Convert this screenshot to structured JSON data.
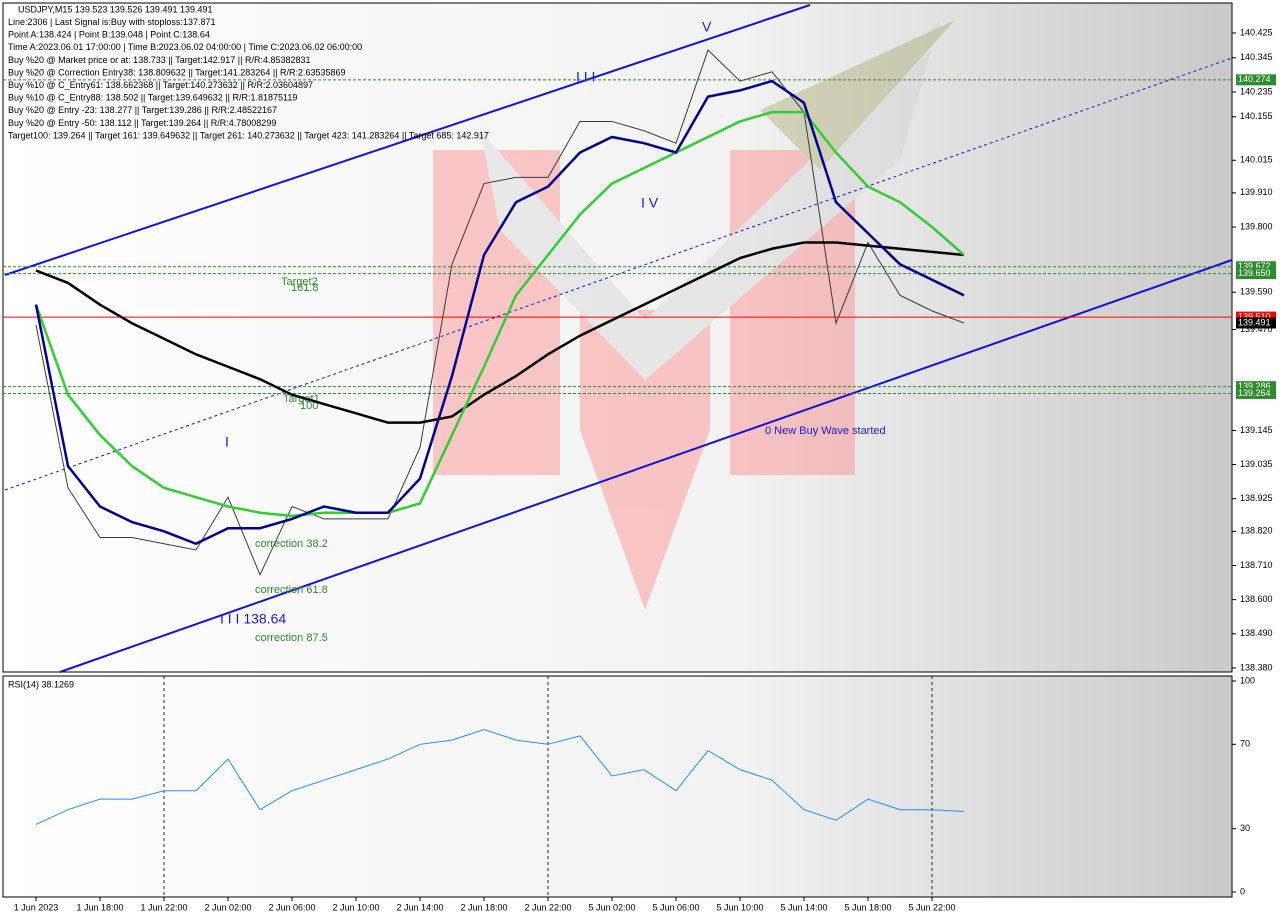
{
  "chart_data": [
    {
      "type": "line",
      "title": "USDJPY,M15  139.523 139.526 139.491 139.491",
      "info_lines": [
        "Line:2306 | Last Signal is:Buy with stoploss:137.871",
        "Point A:138.424 | Point B:139.048 | Point C:138.64",
        "Time A:2023.06.01 17:00:00 | Time B:2023.06.02 04:00:00 | Time C:2023.06.02 06:00:00",
        "Buy %20 @ Market price or at: 138.733 || Target:142.917 || R/R:4.85382831",
        "Buy %20 @ Correction Entry38: 138.809632 || Target:141.283264 || R/R:2.63535869",
        "Buy %10 @ C_Entry61: 138.662368 || Target:140.273632 || R/R:2.03604897",
        "Buy %10 @ C_Entry88: 138.502 || Target:139.649632 || R/R:1.81875119",
        "Buy %20 @ Entry -23: 138.277 || Target:139.286 || R/R:2.48522167",
        "Buy %20 @ Entry -50: 138.112 || Target:139.264 || R/R:4.78008299",
        "Target100: 139.264 || Target 161: 139.649632 || Target 261: 140.273632 || Target 423: 141.283264 || Target 685: 142.917"
      ],
      "annotations": [
        "Target2",
        "161.8",
        "Target1",
        "100",
        "correction 38.2",
        "correction 61.8",
        "correction 87.5",
        "I I I 138.64",
        "I",
        "I I I",
        "V",
        "I V",
        "0 New Buy Wave started"
      ],
      "categories": [
        "1 Jun 2023",
        null,
        "1 Jun 18:00",
        null,
        "1 Jun 22:00",
        null,
        "2 Jun 02:00",
        null,
        "2 Jun 06:00",
        null,
        "2 Jun 10:00",
        null,
        "2 Jun 14:00",
        null,
        "2 Jun 18:00",
        null,
        "2 Jun 22:00",
        null,
        "5 Jun 02:00",
        null,
        "5 Jun 06:00",
        null,
        "5 Jun 10:00",
        null,
        "5 Jun 14:00",
        null,
        "5 Jun 18:00",
        null,
        "5 Jun 22:00",
        null
      ],
      "series": [
        {
          "color": "#3a3a3a",
          "values": [
            139.485,
            138.96,
            138.8,
            138.8,
            138.78,
            138.76,
            138.93,
            138.68,
            138.9,
            138.86,
            138.86,
            138.86,
            139.09,
            139.68,
            139.94,
            139.96,
            139.96,
            140.14,
            140.14,
            140.11,
            140.07,
            140.37,
            140.27,
            140.3,
            140.17,
            139.49,
            139.75,
            139.58,
            139.53,
            139.491
          ]
        },
        {
          "color": "#000000",
          "values": [
            139.66,
            139.62,
            139.55,
            139.49,
            139.44,
            139.39,
            139.35,
            139.31,
            139.26,
            139.23,
            139.2,
            139.17,
            139.17,
            139.19,
            139.26,
            139.32,
            139.39,
            139.45,
            139.5,
            139.55,
            139.6,
            139.65,
            139.7,
            139.73,
            139.75,
            139.75,
            139.74,
            139.73,
            139.72,
            139.71
          ]
        },
        {
          "color": "#32cd32",
          "values": [
            139.55,
            139.26,
            139.13,
            139.03,
            138.96,
            138.93,
            138.9,
            138.88,
            138.87,
            138.88,
            138.88,
            138.88,
            138.91,
            139.13,
            139.35,
            139.58,
            139.71,
            139.84,
            139.94,
            139.99,
            140.04,
            140.09,
            140.14,
            140.17,
            140.17,
            140.04,
            139.93,
            139.88,
            139.8,
            139.71
          ]
        },
        {
          "color": "#00008b",
          "values": [
            139.55,
            139.03,
            138.9,
            138.85,
            138.82,
            138.78,
            138.83,
            138.83,
            138.86,
            138.9,
            138.88,
            138.88,
            138.99,
            139.32,
            139.71,
            139.88,
            139.93,
            140.04,
            140.09,
            140.07,
            140.04,
            140.22,
            140.24,
            140.27,
            140.2,
            139.88,
            139.78,
            139.68,
            139.63,
            139.58
          ]
        }
      ],
      "levels": [
        {
          "value": 140.274,
          "label": "140.274",
          "color": "#2e8b2e"
        },
        {
          "value": 139.672,
          "label": "139.672",
          "color": "#2e8b2e"
        },
        {
          "value": 139.65,
          "label": "139.650",
          "color": "#2e8b2e"
        },
        {
          "value": 139.51,
          "label": "139.510",
          "color": "#ff0000"
        },
        {
          "value": 139.491,
          "label": "139.491",
          "color": "#000000"
        },
        {
          "value": 139.286,
          "label": "139.286",
          "color": "#2e8b2e"
        },
        {
          "value": 139.264,
          "label": "139.264",
          "color": "#2e8b2e"
        }
      ],
      "ylim": [
        138.367,
        140.515
      ],
      "yticks": [
        140.425,
        140.345,
        140.235,
        140.155,
        140.015,
        {
          "value": 139.91,
          "label": "139.910"
        },
        {
          "value": 139.8,
          "label": "139.800"
        },
        {
          "value": 139.59,
          "label": "139.590"
        },
        {
          "value": 139.47,
          "label": "139.470"
        },
        139.145,
        139.035,
        138.925,
        {
          "value": 138.82,
          "label": "138.820"
        },
        {
          "value": 138.71,
          "label": "138.710"
        },
        {
          "value": 138.6,
          "label": "138.600"
        },
        {
          "value": 138.49,
          "label": "138.490"
        },
        {
          "value": 138.38,
          "label": "138.380"
        }
      ]
    },
    {
      "type": "line",
      "title": "RSI(14) 38.1269",
      "series": [
        {
          "color": "#1e90ff",
          "values": [
            32,
            39,
            44,
            44,
            48,
            48,
            63,
            39,
            48,
            53,
            58,
            63,
            70,
            72,
            77,
            72,
            70,
            74,
            55,
            58,
            48,
            67,
            58,
            53,
            39,
            34,
            44,
            39,
            39,
            38.1269
          ]
        }
      ],
      "ylim": [
        0,
        100
      ],
      "yticks": [
        100,
        70,
        30,
        0
      ]
    }
  ]
}
